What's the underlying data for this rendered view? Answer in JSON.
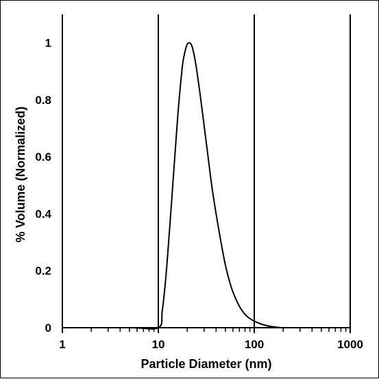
{
  "chart_data": {
    "type": "line",
    "xlabel": "Particle Diameter (nm)",
    "ylabel": "% Volume (Normalized)",
    "x_scale": "log",
    "xlim": [
      1,
      1000
    ],
    "ylim": [
      0,
      1.1
    ],
    "x_ticks": [
      "1",
      "10",
      "100",
      "1000"
    ],
    "y_ticks": [
      "0",
      "0.2",
      "0.4",
      "0.6",
      "0.8",
      "1"
    ],
    "grid": "vertical lines at each decade",
    "series": [
      {
        "color": "#000000",
        "x": [
          1,
          5,
          10,
          11,
          12,
          13,
          14,
          15,
          16,
          17,
          18,
          19,
          20,
          21,
          22,
          23,
          24,
          25,
          27,
          30,
          33,
          36,
          40,
          45,
          50,
          55,
          60,
          70,
          80,
          90,
          100,
          120,
          140,
          160,
          180,
          200,
          300,
          1000
        ],
        "y": [
          0,
          0,
          0.0,
          0.06,
          0.18,
          0.33,
          0.48,
          0.62,
          0.75,
          0.85,
          0.93,
          0.97,
          0.995,
          1.0,
          0.995,
          0.975,
          0.945,
          0.91,
          0.83,
          0.71,
          0.6,
          0.5,
          0.4,
          0.3,
          0.22,
          0.165,
          0.125,
          0.075,
          0.047,
          0.032,
          0.023,
          0.012,
          0.006,
          0.003,
          0.001,
          0.0,
          0,
          0
        ]
      }
    ]
  },
  "colors": {
    "line": "#000000",
    "axes": "#000000",
    "background": "#ffffff"
  }
}
